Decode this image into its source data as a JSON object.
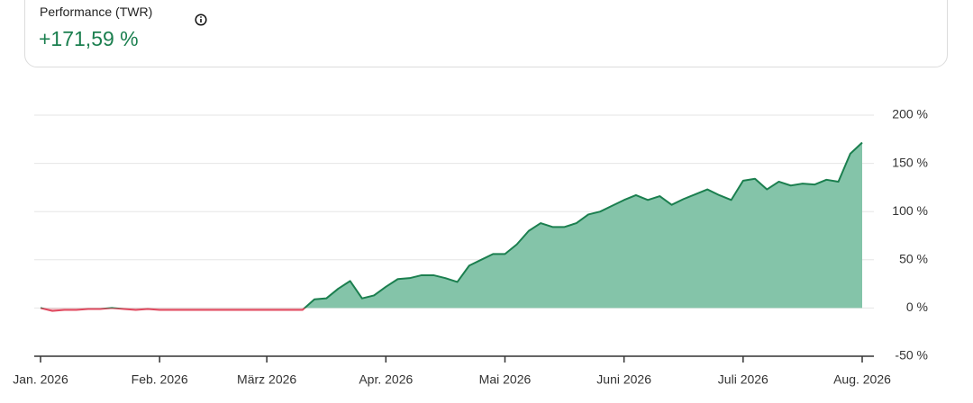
{
  "header": {
    "title": "Performance (TWR)",
    "value": "+171,59 %"
  },
  "chart_data": {
    "type": "area",
    "categories": [
      "Jan. 2026",
      null,
      null,
      null,
      null,
      null,
      null,
      null,
      null,
      null,
      "Feb. 2026",
      null,
      null,
      null,
      null,
      null,
      null,
      null,
      null,
      "März 2026",
      null,
      null,
      null,
      null,
      null,
      null,
      null,
      null,
      null,
      "Apr. 2026",
      null,
      null,
      null,
      null,
      null,
      null,
      null,
      null,
      null,
      "Mai 2026",
      null,
      null,
      null,
      null,
      null,
      null,
      null,
      null,
      null,
      "Juni 2026",
      null,
      null,
      null,
      null,
      null,
      null,
      null,
      null,
      null,
      "Juli 2026",
      null,
      null,
      null,
      null,
      null,
      null,
      null,
      null,
      null,
      "Aug. 2026"
    ],
    "series": [
      {
        "name": "Performance (TWR)",
        "color": "#1b7f4f",
        "fill": "#84c4a9",
        "negative_color": "#e0485e",
        "negative_fill": "#f4c4cb",
        "values": [
          0,
          -3,
          -2,
          -2,
          -1,
          -1,
          0,
          -1,
          -2,
          -1,
          -2,
          -2,
          -2,
          -2,
          -2,
          -2,
          -2,
          -2,
          -2,
          -2,
          -2,
          -2,
          -2,
          9,
          10,
          20,
          28,
          10,
          13,
          22,
          30,
          31,
          34,
          34,
          31,
          27,
          44,
          50,
          56,
          56,
          66,
          80,
          88,
          84,
          84,
          88,
          97,
          100,
          106,
          112,
          117,
          112,
          116,
          107,
          113,
          118,
          123,
          117,
          112,
          132,
          134,
          123,
          131,
          127,
          129,
          128,
          133,
          131,
          160,
          171.59
        ]
      }
    ],
    "ylim": [
      -50,
      200
    ],
    "yticks": [
      {
        "value": -50,
        "label": "-50 %"
      },
      {
        "value": 0,
        "label": "0 %"
      },
      {
        "value": 50,
        "label": "50 %"
      },
      {
        "value": 100,
        "label": "100 %"
      },
      {
        "value": 150,
        "label": "150 %"
      },
      {
        "value": 200,
        "label": "200 %"
      }
    ],
    "grid": true
  }
}
